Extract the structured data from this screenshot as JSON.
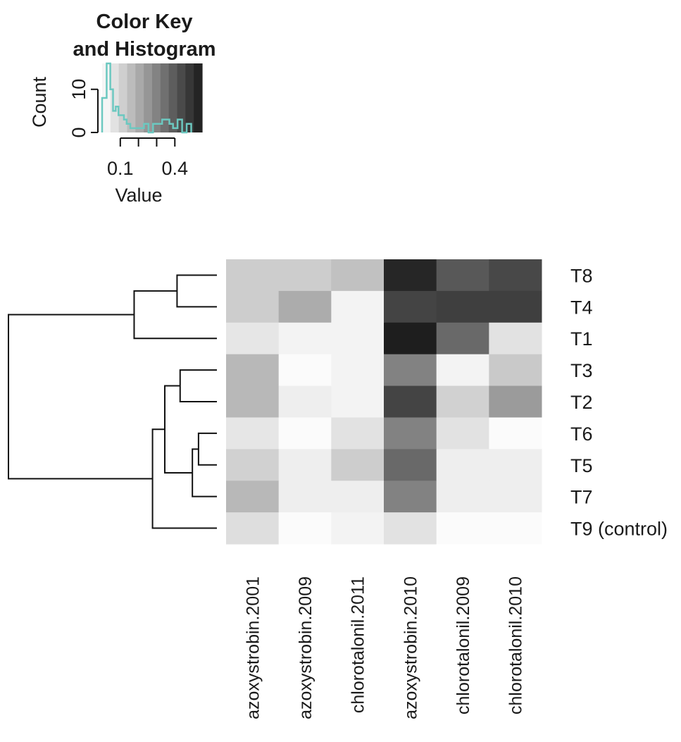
{
  "chart_data": {
    "type": "heatmap",
    "color_key": {
      "title_lines": [
        "Color Key",
        "and Histogram"
      ],
      "xlabel": "Value",
      "ylabel": "Count",
      "x_ticks": [
        "0.1",
        "0.4"
      ],
      "x_tick_values": [
        0.1,
        0.4
      ],
      "y_ticks": [
        "0",
        "10"
      ],
      "y_tick_values": [
        0,
        10
      ],
      "value_range": [
        0.0,
        0.55
      ],
      "color_low": "#ffffff",
      "color_high": "#1a1a1a",
      "histogram_color": "#6cc8c0",
      "histogram_bin_edges": [
        0.0,
        0.0125,
        0.025,
        0.045,
        0.06,
        0.075,
        0.09,
        0.105,
        0.12,
        0.135,
        0.155,
        0.18,
        0.205,
        0.23,
        0.255,
        0.28,
        0.3,
        0.33,
        0.35,
        0.37,
        0.39,
        0.415,
        0.44,
        0.465,
        0.49
      ],
      "histogram_counts": [
        8,
        8,
        16,
        10,
        5,
        6,
        4,
        4,
        3,
        2,
        1,
        1,
        1,
        2,
        0,
        2,
        2,
        3,
        3,
        2,
        1,
        3,
        0,
        2
      ]
    },
    "rows": [
      "T8",
      "T4",
      "T1",
      "T3",
      "T2",
      "T6",
      "T5",
      "T7",
      "T9 (control)"
    ],
    "columns": [
      "azoxystrobin.2001",
      "azoxystrobin.2009",
      "chlorotalonil.2011",
      "azoxystrobin.2010",
      "chlorotalonil.2009",
      "chlorotalonil.2010"
    ],
    "values": [
      [
        0.12,
        0.12,
        0.15,
        0.52,
        0.4,
        0.44
      ],
      [
        0.12,
        0.2,
        0.03,
        0.45,
        0.46,
        0.46
      ],
      [
        0.06,
        0.03,
        0.03,
        0.54,
        0.36,
        0.07
      ],
      [
        0.17,
        0.01,
        0.03,
        0.3,
        0.03,
        0.13
      ],
      [
        0.17,
        0.04,
        0.03,
        0.45,
        0.11,
        0.24
      ],
      [
        0.06,
        0.01,
        0.07,
        0.3,
        0.07,
        0.01
      ],
      [
        0.11,
        0.04,
        0.12,
        0.36,
        0.04,
        0.04
      ],
      [
        0.17,
        0.04,
        0.04,
        0.3,
        0.04,
        0.04
      ],
      [
        0.08,
        0.01,
        0.03,
        0.07,
        0.01,
        0.01
      ]
    ],
    "row_dendrogram": [
      {
        "a": [
          "T8"
        ],
        "b": [
          "T4"
        ],
        "height": 0.065
      },
      {
        "a": [
          "T8",
          "T4"
        ],
        "b": [
          "T1"
        ],
        "height": 0.135
      },
      {
        "a": [
          "T3"
        ],
        "b": [
          "T2"
        ],
        "height": 0.06
      },
      {
        "a": [
          "T6"
        ],
        "b": [
          "T5"
        ],
        "height": 0.03
      },
      {
        "a": [
          "T6",
          "T5"
        ],
        "b": [
          "T7"
        ],
        "height": 0.04
      },
      {
        "a": [
          "T3",
          "T2"
        ],
        "b": [
          "T6",
          "T5",
          "T7"
        ],
        "height": 0.085
      },
      {
        "a": [
          "T3",
          "T2",
          "T6",
          "T5",
          "T7"
        ],
        "b": [
          "T9 (control)"
        ],
        "height": 0.105
      },
      {
        "a": [
          "T8",
          "T4",
          "T1"
        ],
        "b": [
          "T3",
          "T2",
          "T6",
          "T5",
          "T7",
          "T9 (control)"
        ],
        "height": 0.34
      }
    ],
    "dendrogram_color": "#111111"
  }
}
